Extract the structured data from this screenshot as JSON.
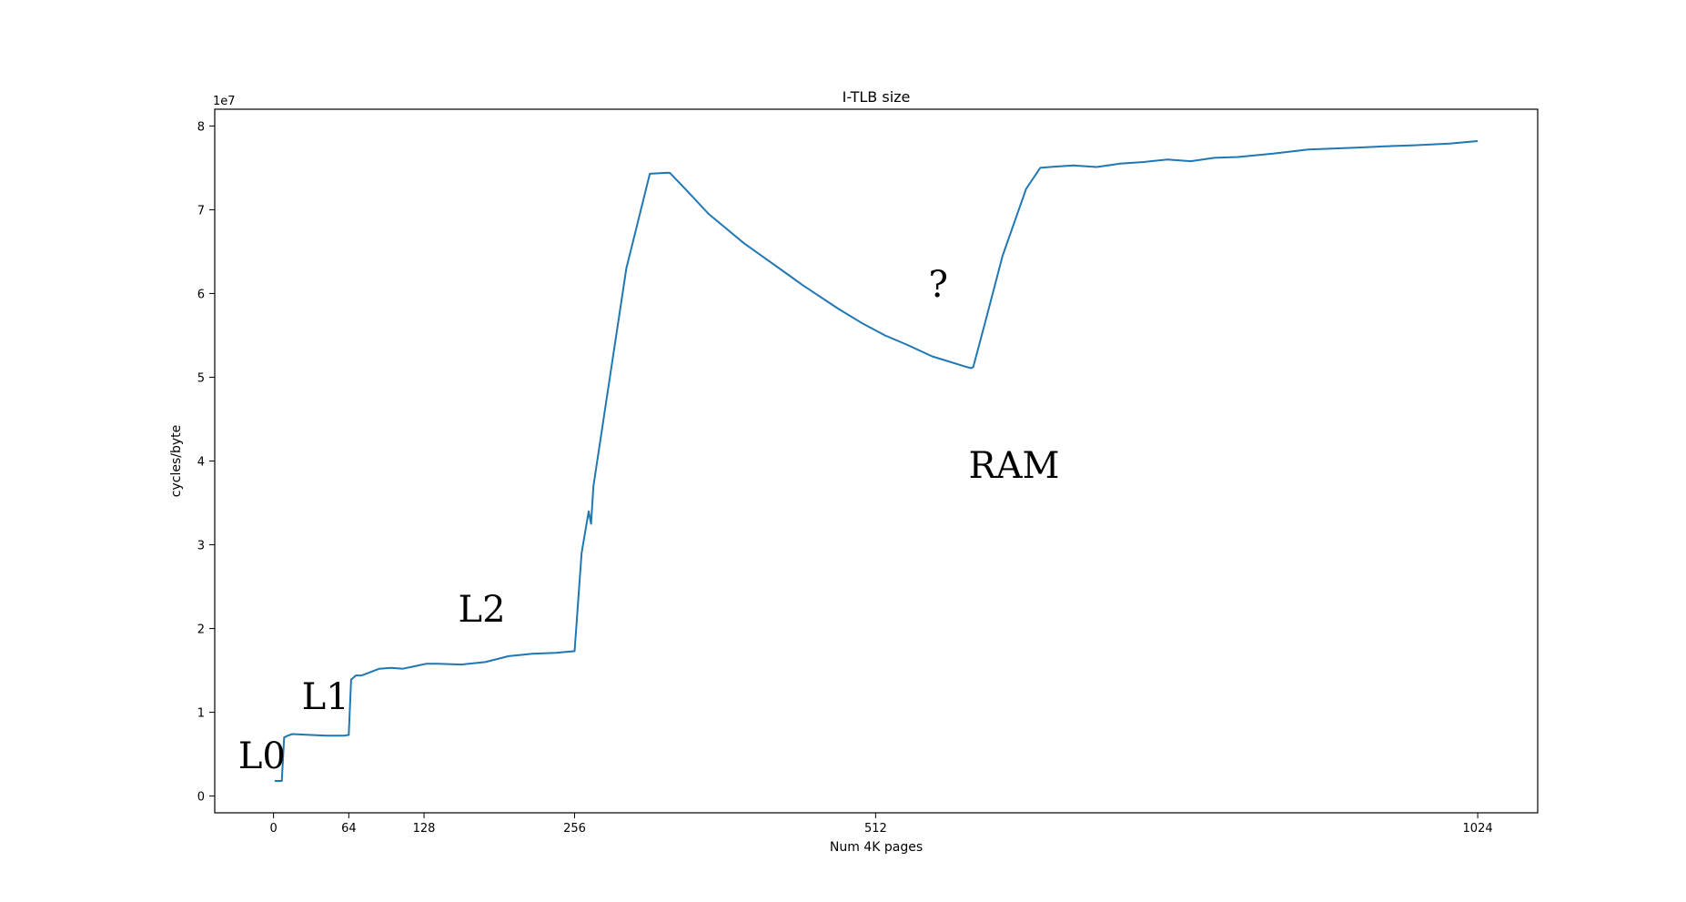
{
  "chart_data": {
    "type": "line",
    "title": "I-TLB size",
    "xlabel": "Num 4K pages",
    "ylabel": "cycles/byte",
    "y_offset_text": "1e7",
    "xlim": [
      -50,
      1075
    ],
    "ylim": [
      -2000000,
      82000000
    ],
    "x_ticks": [
      {
        "value": 0,
        "label": "0"
      },
      {
        "value": 64,
        "label": "64"
      },
      {
        "value": 128,
        "label": "128"
      },
      {
        "value": 256,
        "label": "256"
      },
      {
        "value": 512,
        "label": "512"
      },
      {
        "value": 1024,
        "label": "1024"
      }
    ],
    "y_ticks": [
      {
        "value": 0,
        "label": "0"
      },
      {
        "value": 10000000,
        "label": "1"
      },
      {
        "value": 20000000,
        "label": "2"
      },
      {
        "value": 30000000,
        "label": "3"
      },
      {
        "value": 40000000,
        "label": "4"
      },
      {
        "value": 50000000,
        "label": "5"
      },
      {
        "value": 60000000,
        "label": "6"
      },
      {
        "value": 70000000,
        "label": "7"
      },
      {
        "value": 80000000,
        "label": "8"
      }
    ],
    "grid": false,
    "series": [
      {
        "color": "#1f77b4",
        "x": [
          1,
          7,
          9,
          12,
          16,
          30,
          45,
          60,
          64,
          66,
          70,
          75,
          90,
          100,
          110,
          120,
          130,
          140,
          160,
          180,
          200,
          220,
          240,
          256,
          262,
          268,
          270,
          272,
          300,
          320,
          334,
          337,
          350,
          370,
          400,
          420,
          440,
          450,
          480,
          500,
          520,
          540,
          560,
          590,
          593,
          595,
          605,
          620,
          640,
          652,
          660,
          680,
          700,
          720,
          740,
          760,
          780,
          800,
          820,
          850,
          880,
          900,
          920,
          950,
          970,
          1000,
          1024
        ],
        "y": [
          1800000,
          1800000,
          7000000,
          7200000,
          7400000,
          7300000,
          7200000,
          7200000,
          7300000,
          13900000,
          14400000,
          14400000,
          15200000,
          15300000,
          15200000,
          15500000,
          15800000,
          15800000,
          15700000,
          16000000,
          16700000,
          17000000,
          17100000,
          17300000,
          29000000,
          34000000,
          32500000,
          37000000,
          63000000,
          74300000,
          74400000,
          74400000,
          72500000,
          69500000,
          66000000,
          64000000,
          62000000,
          61000000,
          58200000,
          56500000,
          55000000,
          53800000,
          52500000,
          51200000,
          51100000,
          51200000,
          56500000,
          64500000,
          72500000,
          75000000,
          75100000,
          75300000,
          75100000,
          75500000,
          75700000,
          76000000,
          75800000,
          76200000,
          76300000,
          76700000,
          77200000,
          77300000,
          77400000,
          77600000,
          77700000,
          77900000,
          78200000
        ]
      }
    ],
    "annotations": [
      {
        "text": "L0",
        "x": -30,
        "y": 3300000
      },
      {
        "text": "L1",
        "x": 24,
        "y": 10400000
      },
      {
        "text": "L2",
        "x": 157,
        "y": 20800000
      },
      {
        "text": "?",
        "x": 557,
        "y": 59600000
      },
      {
        "text": "RAM",
        "x": 591,
        "y": 38000000
      }
    ]
  }
}
